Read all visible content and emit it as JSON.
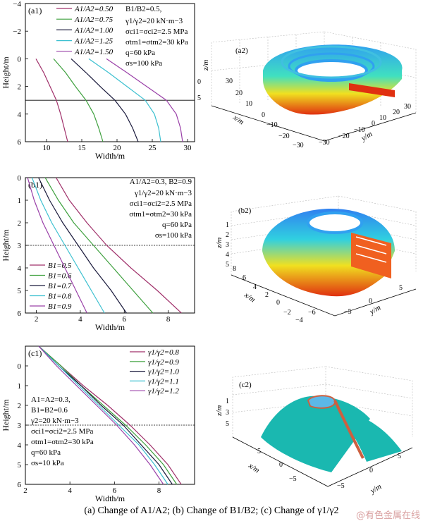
{
  "caption": "(a) Change of A1/A2; (b) Change of B1/B2; (c) Change of γ1/γ2",
  "watermark": "@有色金属在线",
  "chart_data": [
    {
      "type": "line",
      "panel": "(a1)",
      "xlabel": "Width/m",
      "ylabel": "Height/m",
      "xlim": [
        7,
        31
      ],
      "ylim": [
        -4,
        6
      ],
      "y_inverted": true,
      "xticks": [
        10,
        15,
        20,
        25,
        30
      ],
      "yticks": [
        -4,
        -2,
        0,
        2,
        4,
        6
      ],
      "reference_line_y": 3,
      "series": [
        {
          "name": "A1/A2=0.50",
          "color": "#a0306a",
          "x": [
            8.5,
            9.6,
            10.5,
            11.4,
            12.0,
            12.5,
            13.0
          ],
          "y": [
            0,
            1,
            2,
            3,
            4,
            5,
            6
          ]
        },
        {
          "name": "A1/A2=0.75",
          "color": "#3ea03e",
          "x": [
            11.0,
            12.7,
            14.1,
            15.6,
            16.7,
            17.4,
            18.0
          ],
          "y": [
            0,
            1,
            2,
            3,
            4,
            5,
            6
          ]
        },
        {
          "name": "A1/A2=1.00",
          "color": "#1a1a3c",
          "x": [
            13.5,
            15.6,
            17.6,
            19.7,
            21.2,
            22.2,
            23.0
          ],
          "y": [
            0,
            1,
            2,
            3,
            4,
            5,
            6
          ]
        },
        {
          "name": "A1/A2=1.25",
          "color": "#3cc0d0",
          "x": [
            16.0,
            18.8,
            21.4,
            24.0,
            25.3,
            25.9,
            26.2
          ],
          "y": [
            0,
            1,
            2,
            3,
            4,
            5,
            6
          ]
        },
        {
          "name": "A1/A2=1.50",
          "color": "#9a40a8",
          "x": [
            18.5,
            21.4,
            24.2,
            27.0,
            28.4,
            29.0,
            29.3
          ],
          "y": [
            0,
            1,
            2,
            3,
            4,
            5,
            6
          ]
        }
      ],
      "annotations": [
        "B1/B2=0.5,",
        "γ1/γ2=20 kN·m−3",
        "σci1=σci2=2.5 MPa",
        "σtm1=σtm2=30 kPa",
        "q=60 kPa",
        "σs=100 kPa"
      ]
    },
    {
      "type": "line",
      "panel": "(b1)",
      "xlabel": "Width/m",
      "ylabel": "Height/m",
      "xlim": [
        1.5,
        9.2
      ],
      "ylim": [
        0,
        6
      ],
      "y_inverted": true,
      "xticks": [
        2,
        4,
        6,
        8
      ],
      "yticks": [
        0,
        1,
        2,
        3,
        4,
        5,
        6
      ],
      "reference_line_y": 3,
      "series": [
        {
          "name": "B1=0.5",
          "color": "#a0306a",
          "x": [
            2.9,
            3.5,
            4.3,
            5.2,
            6.3,
            7.5,
            8.6
          ],
          "y": [
            0,
            1,
            2,
            3,
            4,
            5,
            6
          ]
        },
        {
          "name": "B1=0.6",
          "color": "#3ea03e",
          "x": [
            2.4,
            3.0,
            3.7,
            4.6,
            5.5,
            6.4,
            7.3
          ],
          "y": [
            0,
            1,
            2,
            3,
            4,
            5,
            6
          ]
        },
        {
          "name": "B1=0.7",
          "color": "#1a1a3c",
          "x": [
            2.1,
            2.6,
            3.2,
            3.9,
            4.6,
            5.4,
            6.1
          ],
          "y": [
            0,
            1,
            2,
            3,
            4,
            5,
            6
          ]
        },
        {
          "name": "B1=0.8",
          "color": "#3cc0d0",
          "x": [
            1.8,
            2.2,
            2.7,
            3.3,
            3.9,
            4.5,
            5.1
          ],
          "y": [
            0,
            1,
            2,
            3,
            4,
            5,
            6
          ]
        },
        {
          "name": "B1=0.9",
          "color": "#9a40a8",
          "x": [
            1.6,
            1.9,
            2.3,
            2.8,
            3.3,
            3.8,
            4.3
          ],
          "y": [
            0,
            1,
            2,
            3,
            4,
            5,
            6
          ]
        }
      ],
      "annotations": [
        "A1/A2=0.3, B2=0.9",
        "γ1/γ2=20 kN·m−3",
        "σci1=σci2=2.5 MPa",
        "σtm1=σtm2=30 kPa",
        "q=60 kPa",
        "σs=100 kPa"
      ]
    },
    {
      "type": "line",
      "panel": "(c1)",
      "xlabel": "Width/m",
      "ylabel": "Height/m",
      "xlim": [
        2,
        9.6
      ],
      "ylim": [
        -1,
        6
      ],
      "y_inverted": true,
      "xticks": [
        2,
        4,
        6,
        8
      ],
      "yticks": [
        0,
        1,
        2,
        3,
        4,
        5,
        6
      ],
      "reference_line_y": 3,
      "series": [
        {
          "name": "γ1/γ2=0.8",
          "color": "#a0306a",
          "x": [
            2.6,
            3.6,
            4.6,
            5.7,
            6.7,
            7.6,
            8.4,
            9.0
          ],
          "y": [
            -1,
            0,
            1,
            2,
            3,
            4,
            5,
            6
          ]
        },
        {
          "name": "γ1/γ2=0.9",
          "color": "#3ea03e",
          "x": [
            2.6,
            3.6,
            4.5,
            5.5,
            6.5,
            7.4,
            8.2,
            8.8
          ],
          "y": [
            -1,
            0,
            1,
            2,
            3,
            4,
            5,
            6
          ]
        },
        {
          "name": "γ1/γ2=1.0",
          "color": "#1a1a3c",
          "x": [
            2.6,
            3.5,
            4.5,
            5.4,
            6.4,
            7.2,
            8.0,
            8.6
          ],
          "y": [
            -1,
            0,
            1,
            2,
            3,
            4,
            5,
            6
          ]
        },
        {
          "name": "γ1/γ2=1.1",
          "color": "#3cc0d0",
          "x": [
            2.6,
            3.5,
            4.4,
            5.3,
            6.2,
            7.1,
            7.8,
            8.4
          ],
          "y": [
            -1,
            0,
            1,
            2,
            3,
            4,
            5,
            6
          ]
        },
        {
          "name": "γ1/γ2=1.2",
          "color": "#9a40a8",
          "x": [
            2.6,
            3.4,
            4.3,
            5.2,
            6.1,
            6.9,
            7.6,
            8.2
          ],
          "y": [
            -1,
            0,
            1,
            2,
            3,
            4,
            5,
            6
          ]
        }
      ],
      "annotations": [
        "A1=A2=0.3,",
        "B1=B2=0.6",
        "γ2=20 kN·m−3",
        "σci1=σci2=2.5 MPa",
        "σtm1=σtm2=30 kPa",
        "q=60 kPa",
        "σs=10 kPa"
      ]
    }
  ],
  "panels3d": [
    {
      "label": "(a2)",
      "xlabel": "x/m",
      "ylabel": "y/m",
      "zlabel": "z/m",
      "xticks": [
        "30",
        "20",
        "10",
        "0",
        "−10",
        "−20",
        "−30"
      ],
      "yticks": [
        "−30",
        "−20",
        "−10",
        "0",
        "10",
        "20",
        "30"
      ],
      "zticks": [
        "0",
        "5"
      ]
    },
    {
      "label": "(b2)",
      "xlabel": "x/m",
      "ylabel": "y/m",
      "zlabel": "z/m",
      "xticks": [
        "8",
        "6",
        "4",
        "2",
        "0",
        "−2",
        "−4",
        "−6"
      ],
      "yticks": [
        "−5",
        "0",
        "5"
      ],
      "zticks": [
        "1",
        "2",
        "3",
        "4",
        "5"
      ]
    },
    {
      "label": "(c2)",
      "xlabel": "x/m",
      "ylabel": "y/m",
      "zlabel": "z/m",
      "xticks": [
        "5",
        "0",
        "−5"
      ],
      "yticks": [
        "−5",
        "0",
        "5"
      ],
      "zticks": [
        "1",
        "3",
        "5"
      ]
    }
  ],
  "colors": {
    "ring_outer": "#e03010",
    "ring_mid": "#f0e020",
    "ring_inner": "#30a0f0",
    "dome_c": "#1ab8b0",
    "cap_c": "#5cb8e8"
  }
}
